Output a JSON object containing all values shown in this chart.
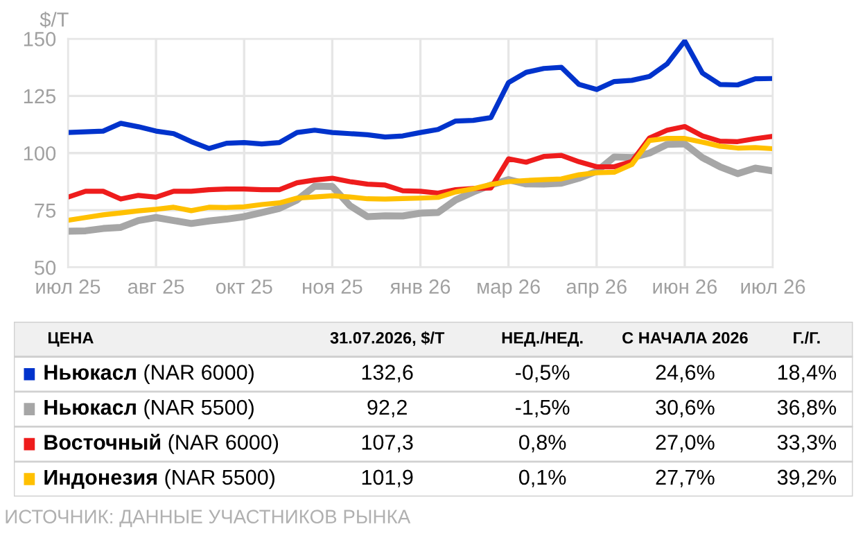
{
  "chart_data": [
    {
      "type": "line",
      "ylabel": "$/Т",
      "ylim": [
        50,
        150
      ],
      "categories": [
        "июл 25",
        null,
        null,
        null,
        null,
        "авг 25",
        null,
        null,
        null,
        null,
        "окт 25",
        null,
        null,
        null,
        null,
        "ноя 25",
        null,
        null,
        null,
        null,
        "янв 26",
        null,
        null,
        null,
        null,
        "мар 26",
        null,
        null,
        null,
        null,
        "апр 26",
        null,
        null,
        null,
        null,
        "июн 26",
        null,
        null,
        null,
        null,
        "июл 26"
      ],
      "yticks": [
        50,
        75,
        100,
        125,
        150
      ],
      "grid": true,
      "marker": "none",
      "line_style": "solid",
      "series": [
        {
          "color": "#0033cc",
          "values": [
            109,
            109.3,
            109.6,
            113,
            111.5,
            109.6,
            108.5,
            105,
            102,
            104.3,
            104.6,
            104,
            104.6,
            109,
            110,
            109,
            108.5,
            108,
            107,
            107.5,
            109,
            110.3,
            114,
            114.3,
            115.5,
            130.8,
            135.3,
            137,
            137.5,
            130,
            127.8,
            131.3,
            131.8,
            133.5,
            139,
            149,
            135,
            130,
            129.8,
            132.5,
            132.6
          ]
        },
        {
          "color": "#a6a6a6",
          "values": [
            65.8,
            66,
            67,
            67.5,
            70.5,
            71.8,
            70.5,
            69.2,
            70.3,
            71.1,
            72.2,
            74,
            75.8,
            79.5,
            85.5,
            85.4,
            77,
            72.2,
            72.6,
            72.5,
            73.7,
            74,
            79.5,
            83,
            86,
            88.4,
            86.5,
            86.4,
            86.8,
            89,
            92,
            98.3,
            98,
            100,
            103.8,
            104,
            98,
            94,
            91,
            93.4,
            92.2
          ]
        },
        {
          "color": "#ee1c1c",
          "values": [
            80.7,
            83.3,
            83.3,
            79.9,
            81.5,
            80.7,
            83.3,
            83.3,
            84,
            84.3,
            84.3,
            84,
            84,
            87,
            88.2,
            89,
            87.5,
            86.4,
            86,
            83.5,
            83.3,
            82.5,
            84,
            84.5,
            84.7,
            97.5,
            96,
            98.5,
            99,
            96.2,
            94,
            94,
            96.3,
            106.6,
            110,
            111.6,
            107.5,
            105.2,
            105,
            106.3,
            107.3
          ]
        },
        {
          "color": "#ffc000",
          "values": [
            70.6,
            71.8,
            73,
            73.8,
            74.7,
            75.4,
            76.3,
            74.8,
            76.3,
            76.2,
            76.5,
            77.5,
            78.2,
            80.3,
            80.8,
            81.3,
            80.8,
            80,
            79.9,
            80.1,
            80.3,
            80.6,
            83,
            84.4,
            86.3,
            87.5,
            88,
            88.4,
            88.7,
            90.5,
            91.4,
            91.6,
            95,
            105.5,
            106.4,
            106.4,
            104.8,
            103,
            102.2,
            102.4,
            101.9
          ]
        }
      ]
    },
    {
      "type": "other",
      "categories": [
        "ЦЕНА",
        "31.07.2026, $/Т",
        "НЕД./НЕД.",
        "С НАЧАЛА 2026",
        "Г./Г."
      ],
      "y_categories": [
        "Ньюкасл",
        "Ньюкасл",
        "Восточный",
        "Индонезия"
      ],
      "y2_categories": [
        "(NAR 6000)",
        "(NAR 5500)",
        "(NAR 6000)",
        "(NAR 5500)"
      ],
      "cell_labels": [
        [
          "132,6",
          "-0,5%",
          "24,6%",
          "18,4%"
        ],
        [
          "92,2",
          "-1,5%",
          "30,6%",
          "36,8%"
        ],
        [
          "107,3",
          "0,8%",
          "27,0%",
          "33,3%"
        ],
        [
          "101,9",
          "0,1%",
          "27,7%",
          "39,2%"
        ]
      ],
      "annotations": [
        "ИСТОЧНИК: ДАННЫЕ УЧАСТНИКОВ РЫНКА"
      ]
    }
  ]
}
